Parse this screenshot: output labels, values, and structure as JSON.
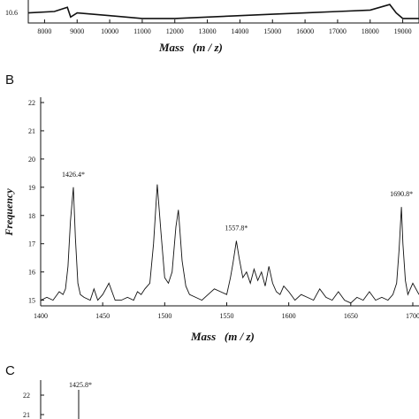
{
  "chart_data": [
    {
      "type": "line",
      "panel": "",
      "xlabel": "Mass   (m / z)",
      "ylabel": "",
      "xlim": [
        7500,
        19500
      ],
      "x_ticks": [
        "8000",
        "9000",
        "10000",
        "11000",
        "12000",
        "13000",
        "14000",
        "15000",
        "16000",
        "17000",
        "18000",
        "19000"
      ],
      "y_ticks": [
        "10.6"
      ],
      "series": [
        {
          "x": [
            7500,
            8300,
            8700,
            8800,
            9000,
            10000,
            11000,
            12000,
            13000,
            14000,
            15000,
            16000,
            17000,
            18000,
            18600,
            18800,
            19000,
            19500
          ],
          "y": [
            10.66,
            10.67,
            10.7,
            10.63,
            10.66,
            10.64,
            10.62,
            10.62,
            10.63,
            10.64,
            10.65,
            10.66,
            10.67,
            10.68,
            10.72,
            10.66,
            10.62,
            10.62
          ]
        }
      ]
    },
    {
      "type": "line",
      "panel": "B",
      "xlabel": "Mass   (m / z)",
      "ylabel": "Frequency",
      "xlim": [
        1400,
        1705
      ],
      "ylim": [
        14.8,
        22
      ],
      "x_ticks": [
        "1400",
        "1450",
        "1500",
        "1550",
        "1600",
        "1650",
        "1700"
      ],
      "y_ticks": [
        "15",
        "16",
        "17",
        "18",
        "19",
        "20",
        "21",
        "22"
      ],
      "annotations": [
        "1426.4*",
        "1557.8*",
        "1690.8*"
      ],
      "series": [
        {
          "x": [
            1400,
            1405,
            1410,
            1415,
            1418,
            1420,
            1422,
            1424,
            1426.4,
            1428,
            1430,
            1432,
            1435,
            1440,
            1443,
            1446,
            1450,
            1455,
            1460,
            1465,
            1470,
            1475,
            1478,
            1481,
            1484,
            1488,
            1491,
            1494,
            1497,
            1500,
            1503,
            1506,
            1509,
            1511,
            1514,
            1517,
            1520,
            1525,
            1530,
            1535,
            1540,
            1545,
            1550,
            1553,
            1555,
            1557.8,
            1560,
            1563,
            1566,
            1569,
            1572,
            1575,
            1578,
            1581,
            1584,
            1587,
            1590,
            1593,
            1596,
            1600,
            1605,
            1610,
            1615,
            1620,
            1625,
            1630,
            1635,
            1640,
            1645,
            1650,
            1655,
            1660,
            1665,
            1670,
            1675,
            1680,
            1684,
            1687,
            1689,
            1690.8,
            1692,
            1694,
            1696,
            1700,
            1705
          ],
          "y": [
            15.0,
            15.1,
            15.0,
            15.3,
            15.2,
            15.4,
            16.2,
            17.8,
            19.0,
            17.2,
            15.6,
            15.2,
            15.1,
            15.0,
            15.4,
            15.0,
            15.2,
            15.6,
            15.0,
            15.0,
            15.1,
            15.0,
            15.3,
            15.2,
            15.4,
            15.6,
            17.0,
            19.1,
            17.4,
            15.8,
            15.6,
            16.0,
            17.6,
            18.2,
            16.4,
            15.5,
            15.2,
            15.1,
            15.0,
            15.2,
            15.4,
            15.3,
            15.2,
            15.8,
            16.3,
            17.1,
            16.5,
            15.8,
            16.0,
            15.6,
            16.1,
            15.7,
            16.0,
            15.5,
            16.2,
            15.6,
            15.3,
            15.2,
            15.5,
            15.3,
            15.0,
            15.2,
            15.1,
            15.0,
            15.4,
            15.1,
            15.0,
            15.3,
            15.0,
            14.9,
            15.1,
            15.0,
            15.3,
            15.0,
            15.1,
            15.0,
            15.2,
            15.6,
            16.8,
            18.3,
            17.0,
            15.7,
            15.2,
            15.6,
            15.2
          ]
        }
      ]
    },
    {
      "type": "line",
      "panel": "C",
      "xlabel": "",
      "ylabel": "",
      "y_ticks": [
        "22",
        "21"
      ],
      "annotations": [
        "1425.8*"
      ],
      "series": [
        {
          "x": [
            1425.8
          ],
          "y": [
            22.0
          ]
        }
      ]
    }
  ]
}
